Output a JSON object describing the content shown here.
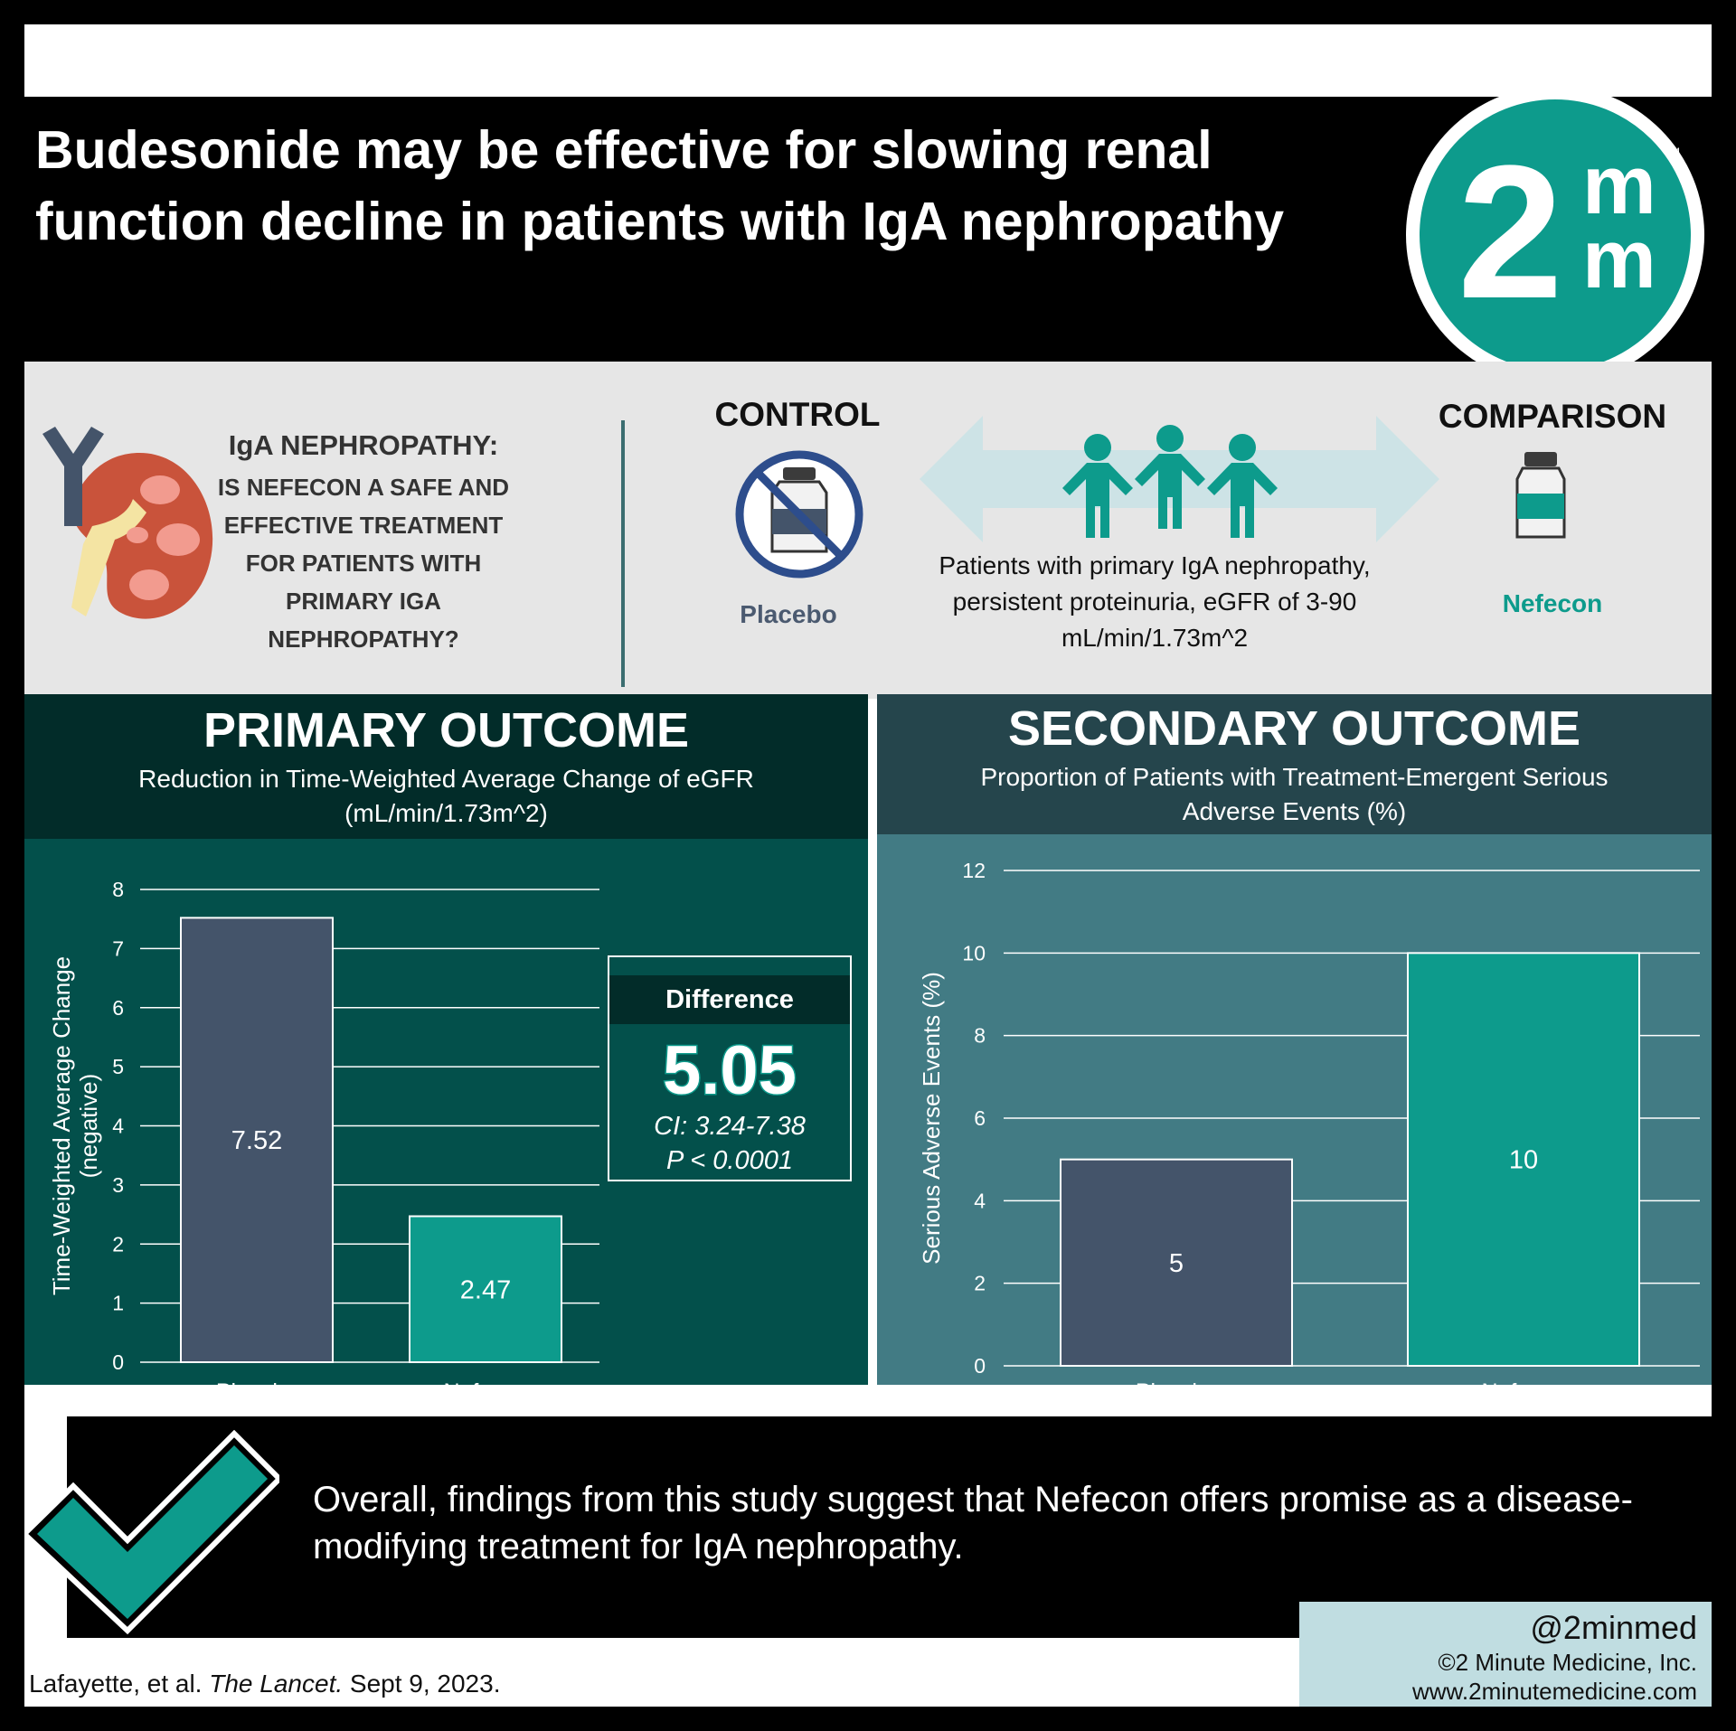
{
  "header": {
    "title": "Budesonide may be effective for slowing renal function decline in patients with IgA nephropathy",
    "logo_two": "2",
    "logo_m": "m",
    "logo_tm": "TM"
  },
  "pico": {
    "question_title": "IgA NEPHROPATHY:",
    "question_text": "Is Nefecon a safe and effective treatment for patients with primary IgA nephropathy?",
    "control_label": "CONTROL",
    "control_arm": "Placebo",
    "comparison_label": "COMPARISON",
    "comparison_arm": "Nefecon",
    "population": "Patients with primary IgA nephropathy, persistent proteinuria, eGFR of 3-90 mL/min/1.73m^2"
  },
  "primary": {
    "title": "PRIMARY OUTCOME",
    "subtitle": "Reduction in Time-Weighted Average Change of eGFR (mL/min/1.73m^2)",
    "difference_label": "Difference",
    "difference_value": "5.05",
    "ci": "CI: 3.24-7.38",
    "p_value": "P < 0.0001"
  },
  "secondary": {
    "title": "SECONDARY OUTCOME",
    "subtitle": "Proportion of Patients with Treatment-Emergent Serious Adverse Events (%)"
  },
  "chart_data": [
    {
      "type": "bar",
      "categories": [
        "Placebo",
        "Nefecon"
      ],
      "values": [
        7.52,
        2.47
      ],
      "value_labels": [
        "7.52",
        "2.47"
      ],
      "ylabel": "Time-Weighted Average Change (negative)",
      "ylim": [
        0,
        8
      ],
      "yticks": [
        0,
        1,
        2,
        3,
        4,
        5,
        6,
        7,
        8
      ],
      "grid": true,
      "colors": [
        "#44546a",
        "#0d9b8c"
      ]
    },
    {
      "type": "bar",
      "categories": [
        "Placebo",
        "Nefecon"
      ],
      "values": [
        5,
        10
      ],
      "value_labels": [
        "5",
        "10"
      ],
      "ylabel": "Serious Adverse Events (%)",
      "ylim": [
        0,
        12
      ],
      "yticks": [
        0,
        2,
        4,
        6,
        8,
        10,
        12
      ],
      "grid": true,
      "colors": [
        "#44546a",
        "#0d9b8c"
      ]
    }
  ],
  "conclusion": {
    "text": "Overall, findings from this study suggest that Nefecon offers promise as a disease-modifying treatment for IgA nephropathy."
  },
  "footer": {
    "citation_authors": "Lafayette, et al. ",
    "citation_journal": "The Lancet.",
    "citation_date": " Sept 9, 2023.",
    "handle": "@2minmed",
    "copyright": "©2 Minute Medicine, Inc.",
    "website": "www.2minutemedicine.com"
  },
  "colors": {
    "teal": "#0d9b8c",
    "slate": "#44546a",
    "primary_panel": "#03504b",
    "primary_header": "#022c29",
    "secondary_panel": "#427b84",
    "secondary_header": "#25454c"
  }
}
